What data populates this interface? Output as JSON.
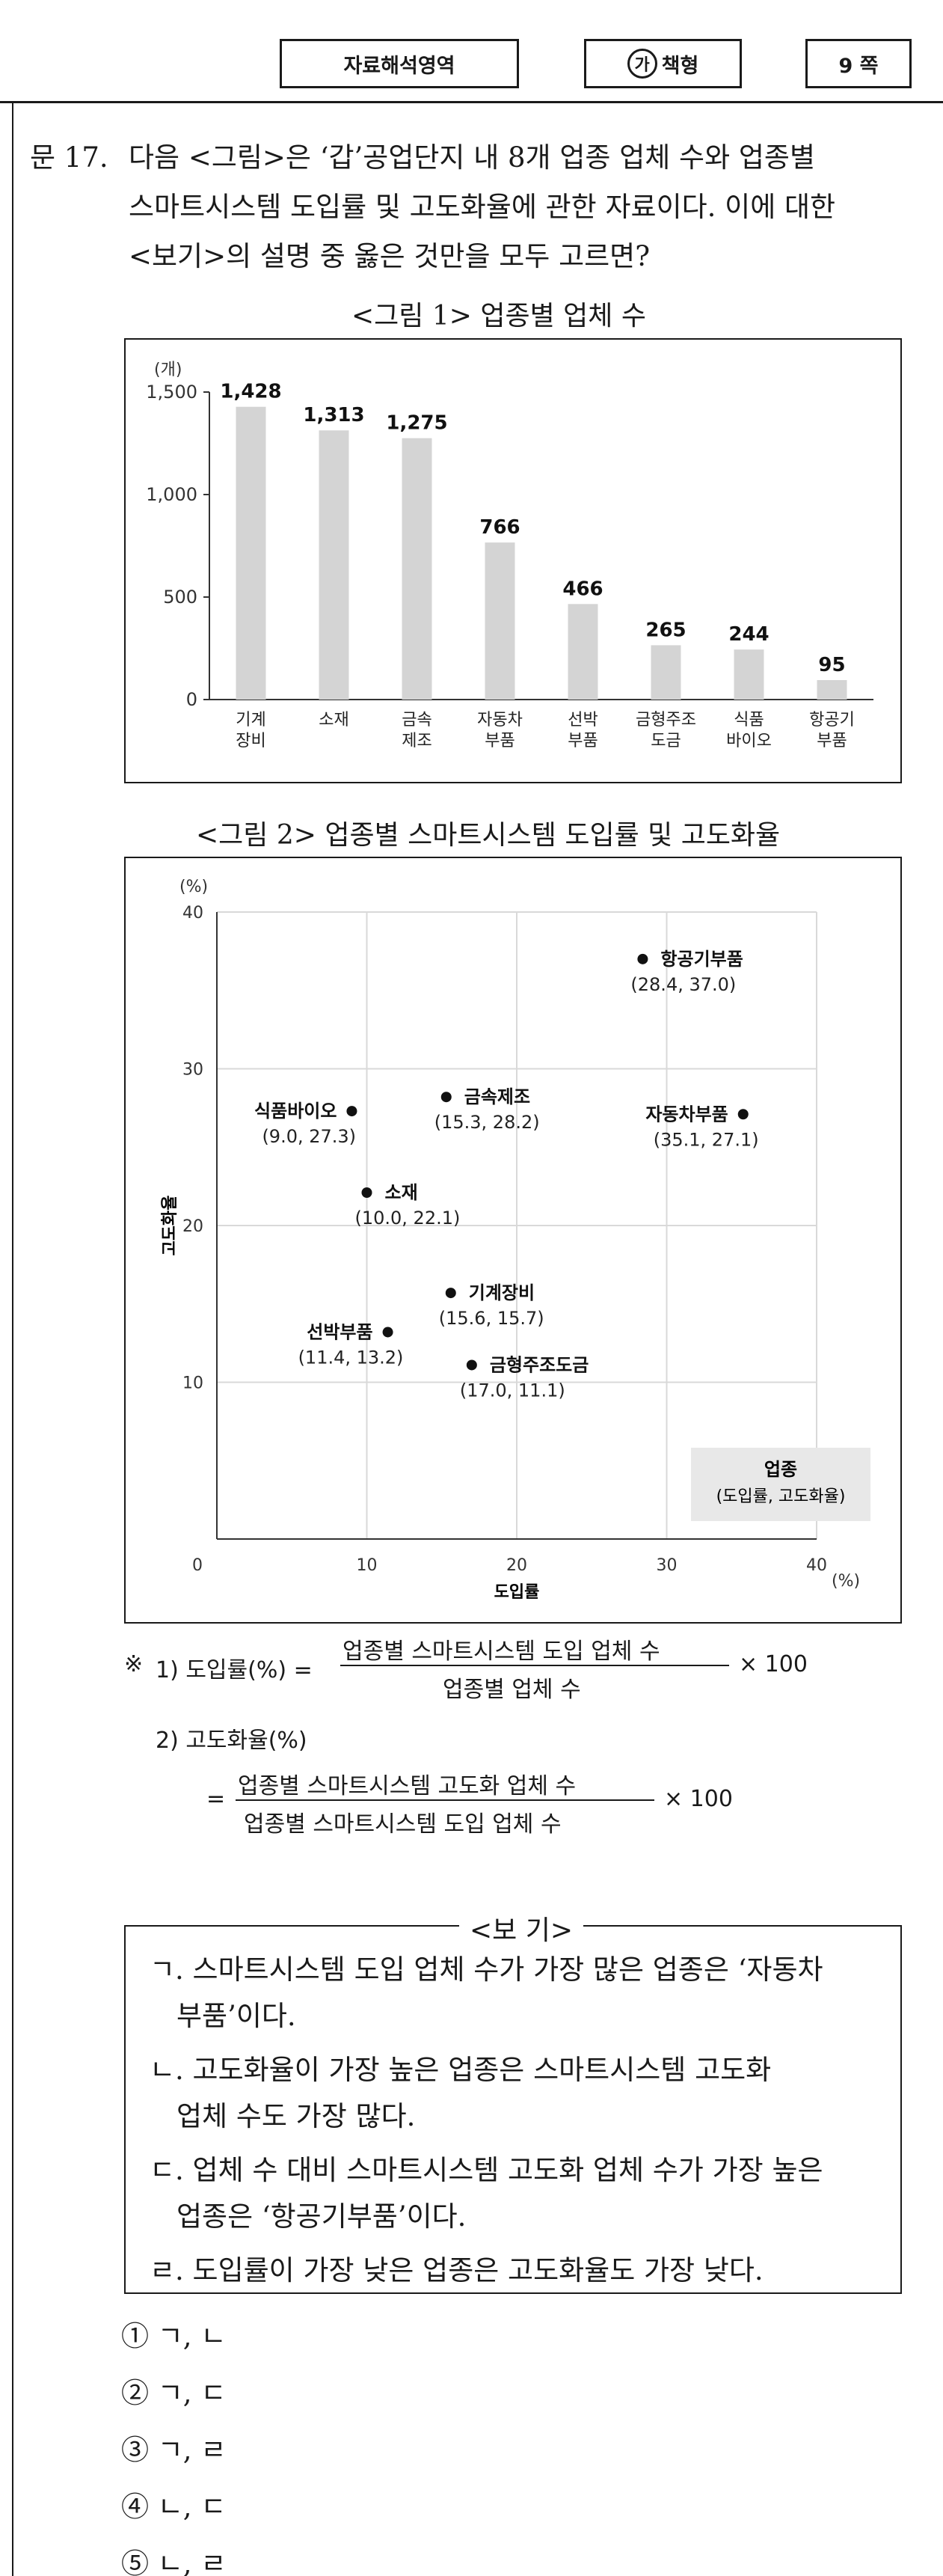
{
  "header": {
    "section": "자료해석영역",
    "type_mark": "가",
    "type_label": "책형",
    "page": "9 쪽"
  },
  "question": {
    "number": "문 17.",
    "line1": "다음 <그림>은 ‘갑’공업단지 내 8개 업종 업체 수와 업종별",
    "line2": "스마트시스템 도입률 및 고도화율에 관한 자료이다. 이에 대한",
    "line3": "<보기>의 설명 중 옳은 것만을 모두 고르면?"
  },
  "figure1": {
    "title": "<그림 1> 업종별 업체 수",
    "unit": "(개)"
  },
  "figure2": {
    "title": "<그림 2> 업종별 스마트시스템 도입률 및 고도화율",
    "unit_y": "(%)",
    "unit_x": "(%)",
    "legend_title": "업종",
    "legend_sub": "(도입률, 고도화율)"
  },
  "notes": {
    "mark": "※",
    "n1_label": "1)  도입률(%) =",
    "n1_num": "업종별 스마트시스템 도입 업체 수",
    "n1_den": "업종별 업체 수",
    "n1_tail": "× 100",
    "n2_label": "2)  고도화율(%)",
    "n2_eq": "=",
    "n2_num": "업종별 스마트시스템 고도화 업체 수",
    "n2_den": "업종별 스마트시스템 도입 업체 수",
    "n2_tail": "× 100"
  },
  "bogi": {
    "title": "<보  기>",
    "items": [
      {
        "line1": "ㄱ. 스마트시스템 도입 업체 수가 가장 많은 업종은 ‘자동차",
        "line2": "부품’이다."
      },
      {
        "line1": "ㄴ. 고도화율이 가장 높은 업종은 스마트시스템 고도화",
        "line2": "업체 수도 가장 많다."
      },
      {
        "line1": "ㄷ. 업체 수 대비 스마트시스템 고도화 업체 수가 가장 높은",
        "line2": "업종은 ‘항공기부품’이다."
      },
      {
        "line1": "ㄹ. 도입률이 가장 낮은 업종은 고도화율도 가장 낮다.",
        "line2": ""
      }
    ]
  },
  "options": [
    "① ㄱ, ㄴ",
    "② ㄱ, ㄷ",
    "③ ㄱ, ㄹ",
    "④ ㄴ, ㄷ",
    "⑤ ㄴ, ㄹ"
  ],
  "colors": {
    "bar": "#d4d4d4",
    "grid": "#d9d9d9",
    "legend_bg": "#e8e8e8"
  },
  "chart_data": [
    {
      "type": "bar",
      "title": "<그림 1> 업종별 업체 수",
      "ylabel": "(개)",
      "ylim": [
        0,
        1500
      ],
      "yticks": [
        "0",
        "500",
        "1,000",
        "1,500"
      ],
      "categories": [
        [
          "기계",
          "장비"
        ],
        [
          "소재"
        ],
        [
          "금속",
          "제조"
        ],
        [
          "자동차",
          "부품"
        ],
        [
          "선박",
          "부품"
        ],
        [
          "금형주조",
          "도금"
        ],
        [
          "식품",
          "바이오"
        ],
        [
          "항공기",
          "부품"
        ]
      ],
      "values": [
        1428,
        1313,
        1275,
        766,
        466,
        265,
        244,
        95
      ],
      "labels": [
        "1,428",
        "1,313",
        "1,275",
        "766",
        "466",
        "265",
        "244",
        "95"
      ]
    },
    {
      "type": "scatter",
      "title": "<그림 2> 업종별 스마트시스템 도입률 및 고도화율",
      "xlabel": "도입률",
      "ylabel": "고도화율",
      "xlim": [
        0,
        40
      ],
      "ylim": [
        0,
        40
      ],
      "xticks": [
        "0",
        "10",
        "20",
        "30",
        "40"
      ],
      "yticks": [
        "10",
        "20",
        "30",
        "40"
      ],
      "grid": true,
      "points": [
        {
          "name": "항공기부품",
          "coord": "(28.4, 37.0)",
          "x": 28.4,
          "y": 37.0,
          "pos": "right"
        },
        {
          "name": "금속제조",
          "coord": "(15.3, 28.2)",
          "x": 15.3,
          "y": 28.2,
          "pos": "right"
        },
        {
          "name": "식품바이오",
          "coord": "(9.0, 27.3)",
          "x": 9.0,
          "y": 27.3,
          "pos": "left"
        },
        {
          "name": "자동차부품",
          "coord": "(35.1, 27.1)",
          "x": 35.1,
          "y": 27.1,
          "pos": "left"
        },
        {
          "name": "소재",
          "coord": "(10.0, 22.1)",
          "x": 10.0,
          "y": 22.1,
          "pos": "right"
        },
        {
          "name": "기계장비",
          "coord": "(15.6, 15.7)",
          "x": 15.6,
          "y": 15.7,
          "pos": "right"
        },
        {
          "name": "선박부품",
          "coord": "(11.4, 13.2)",
          "x": 11.4,
          "y": 13.2,
          "pos": "left"
        },
        {
          "name": "금형주조도금",
          "coord": "(17.0, 11.1)",
          "x": 17.0,
          "y": 11.1,
          "pos": "right"
        }
      ]
    }
  ]
}
